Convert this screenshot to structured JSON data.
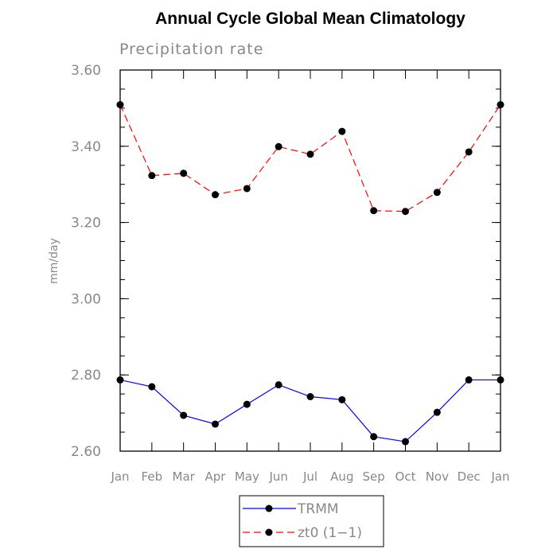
{
  "chart_data": {
    "type": "line",
    "title": "Annual Cycle Global Mean Climatology",
    "subtitle": "Precipitation rate",
    "xlabel": "",
    "ylabel": "mm/day",
    "categories": [
      "Jan",
      "Feb",
      "Mar",
      "Apr",
      "May",
      "Jun",
      "Jul",
      "Aug",
      "Sep",
      "Oct",
      "Nov",
      "Dec",
      "Jan"
    ],
    "ylim": [
      2.6,
      3.6
    ],
    "yticks": [
      "2.60",
      "2.80",
      "3.00",
      "3.20",
      "3.40",
      "3.60"
    ],
    "grid": false,
    "legend_position": "bottom-center",
    "series": [
      {
        "name": "TRMM",
        "color": "#0000ff",
        "dash": "solid",
        "marker": "filled-circle",
        "values": [
          2.787,
          2.769,
          2.694,
          2.671,
          2.723,
          2.774,
          2.743,
          2.735,
          2.638,
          2.625,
          2.702,
          2.787,
          2.787
        ]
      },
      {
        "name": "zt0 (1−1)",
        "color": "#ff0000",
        "dash": "dashed",
        "marker": "filled-circle",
        "values": [
          3.509,
          3.323,
          3.329,
          3.273,
          3.289,
          3.399,
          3.379,
          3.439,
          3.231,
          3.229,
          3.279,
          3.385,
          3.509
        ]
      }
    ]
  }
}
